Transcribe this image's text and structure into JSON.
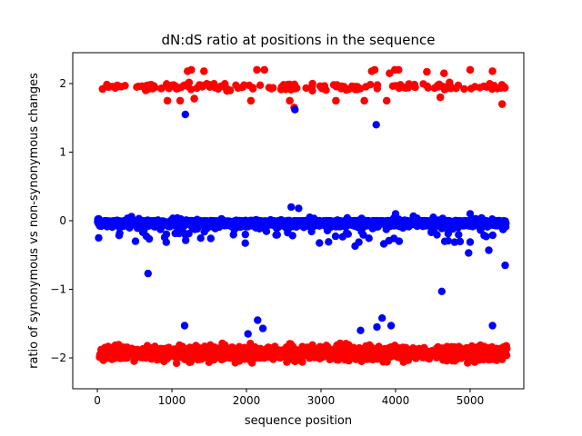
{
  "chart_data": {
    "type": "scatter",
    "title": "dN:dS ratio at positions in the sequence",
    "xlabel": "sequence position",
    "ylabel": "ratio of synonymous vs non-synonymous changes",
    "xlim": [
      -330,
      5720
    ],
    "ylim": [
      -2.45,
      2.45
    ],
    "xticks": [
      0,
      1000,
      2000,
      3000,
      4000,
      5000
    ],
    "yticks": [
      -2,
      -1,
      0,
      1,
      2
    ],
    "grid": false,
    "colors": {
      "red": "#ff0000",
      "blue": "#0000ff"
    },
    "clusters": [
      {
        "color": "red",
        "center": 1.95,
        "x_range": [
          50,
          5500
        ],
        "count": 150,
        "spread": 0.06
      },
      {
        "color": "red",
        "center": -1.93,
        "x_range": [
          30,
          5500
        ],
        "count": 1400,
        "spread": 0.1
      },
      {
        "color": "blue",
        "center": 0.0,
        "x_range": [
          0,
          5480
        ],
        "count": 2200,
        "spread": 0.06
      }
    ],
    "points": [
      {
        "x": 70,
        "y": 1.92,
        "color": "red"
      },
      {
        "x": 150,
        "y": 1.95,
        "color": "red"
      },
      {
        "x": 600,
        "y": 1.96,
        "color": "red"
      },
      {
        "x": 650,
        "y": 1.9,
        "color": "red"
      },
      {
        "x": 700,
        "y": 1.97,
        "color": "red"
      },
      {
        "x": 860,
        "y": 1.93,
        "color": "red"
      },
      {
        "x": 940,
        "y": 1.75,
        "color": "red"
      },
      {
        "x": 960,
        "y": 1.93,
        "color": "red"
      },
      {
        "x": 1050,
        "y": 1.96,
        "color": "red"
      },
      {
        "x": 1110,
        "y": 1.75,
        "color": "red"
      },
      {
        "x": 1210,
        "y": 2.18,
        "color": "red"
      },
      {
        "x": 1260,
        "y": 2.2,
        "color": "red"
      },
      {
        "x": 1300,
        "y": 1.78,
        "color": "red"
      },
      {
        "x": 1430,
        "y": 2.18,
        "color": "red"
      },
      {
        "x": 1780,
        "y": 1.9,
        "color": "red"
      },
      {
        "x": 2060,
        "y": 1.75,
        "color": "red"
      },
      {
        "x": 2140,
        "y": 2.2,
        "color": "red"
      },
      {
        "x": 2240,
        "y": 2.2,
        "color": "red"
      },
      {
        "x": 2580,
        "y": 1.75,
        "color": "red"
      },
      {
        "x": 2640,
        "y": 1.65,
        "color": "red"
      },
      {
        "x": 3200,
        "y": 1.75,
        "color": "red"
      },
      {
        "x": 3580,
        "y": 1.75,
        "color": "red"
      },
      {
        "x": 3680,
        "y": 2.18,
        "color": "red"
      },
      {
        "x": 3720,
        "y": 2.2,
        "color": "red"
      },
      {
        "x": 3880,
        "y": 1.75,
        "color": "red"
      },
      {
        "x": 3920,
        "y": 2.15,
        "color": "red"
      },
      {
        "x": 3990,
        "y": 2.2,
        "color": "red"
      },
      {
        "x": 4040,
        "y": 2.2,
        "color": "red"
      },
      {
        "x": 4420,
        "y": 2.17,
        "color": "red"
      },
      {
        "x": 4600,
        "y": 1.8,
        "color": "red"
      },
      {
        "x": 4650,
        "y": 2.15,
        "color": "red"
      },
      {
        "x": 5000,
        "y": 2.2,
        "color": "red"
      },
      {
        "x": 5300,
        "y": 2.18,
        "color": "red"
      },
      {
        "x": 5430,
        "y": 1.7,
        "color": "red"
      },
      {
        "x": 1180,
        "y": 1.55,
        "color": "blue"
      },
      {
        "x": 2650,
        "y": 1.62,
        "color": "blue"
      },
      {
        "x": 3740,
        "y": 1.4,
        "color": "blue"
      },
      {
        "x": 680,
        "y": -0.77,
        "color": "blue"
      },
      {
        "x": 4620,
        "y": -1.03,
        "color": "blue"
      },
      {
        "x": 5470,
        "y": -0.65,
        "color": "blue"
      },
      {
        "x": 1170,
        "y": -1.53,
        "color": "blue"
      },
      {
        "x": 2020,
        "y": -1.65,
        "color": "blue"
      },
      {
        "x": 2150,
        "y": -1.45,
        "color": "blue"
      },
      {
        "x": 2220,
        "y": -1.57,
        "color": "blue"
      },
      {
        "x": 3530,
        "y": -1.6,
        "color": "blue"
      },
      {
        "x": 3750,
        "y": -1.55,
        "color": "blue"
      },
      {
        "x": 3820,
        "y": -1.42,
        "color": "blue"
      },
      {
        "x": 3940,
        "y": -1.53,
        "color": "blue"
      },
      {
        "x": 5300,
        "y": -1.53,
        "color": "blue"
      },
      {
        "x": 4980,
        "y": -0.47,
        "color": "blue"
      },
      {
        "x": 4660,
        "y": -0.3,
        "color": "blue"
      },
      {
        "x": 5250,
        "y": -0.43,
        "color": "blue"
      },
      {
        "x": 2600,
        "y": 0.2,
        "color": "blue"
      },
      {
        "x": 2700,
        "y": 0.18,
        "color": "blue"
      },
      {
        "x": 4000,
        "y": 0.1,
        "color": "blue"
      },
      {
        "x": 5000,
        "y": 0.1,
        "color": "blue"
      }
    ]
  }
}
